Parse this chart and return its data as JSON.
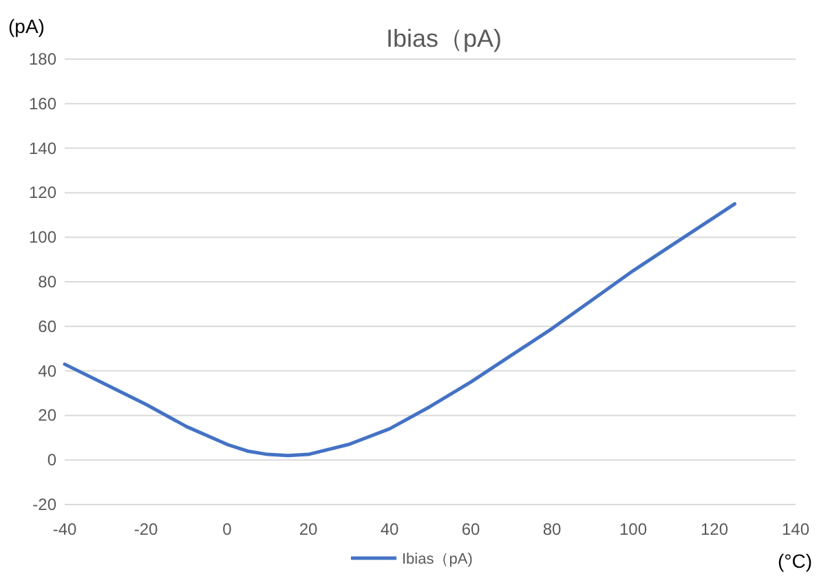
{
  "chart_data": {
    "type": "line",
    "title": "Ibias（pA)",
    "xlabel": "(°C)",
    "ylabel": "(pA)",
    "xlim": [
      -40,
      140
    ],
    "xticks": [
      -40,
      -20,
      0,
      20,
      40,
      60,
      80,
      100,
      120,
      140
    ],
    "ylim": [
      -20,
      180
    ],
    "yticks": [
      -20,
      0,
      20,
      40,
      60,
      80,
      100,
      120,
      140,
      160,
      180
    ],
    "grid": "y",
    "legend": "bottom",
    "marker": "none",
    "line_style": "solid",
    "series": [
      {
        "name": "Ibias（pA)",
        "color": "#4472c4",
        "x": [
          -40,
          -30,
          -20,
          -10,
          0,
          5,
          10,
          15,
          20,
          30,
          40,
          50,
          60,
          70,
          80,
          90,
          100,
          110,
          120,
          125
        ],
        "values": [
          43,
          34,
          25,
          15,
          7,
          4,
          2.5,
          2,
          2.5,
          7,
          14,
          24,
          35,
          47,
          59,
          72,
          85,
          97,
          109,
          115
        ]
      }
    ]
  }
}
